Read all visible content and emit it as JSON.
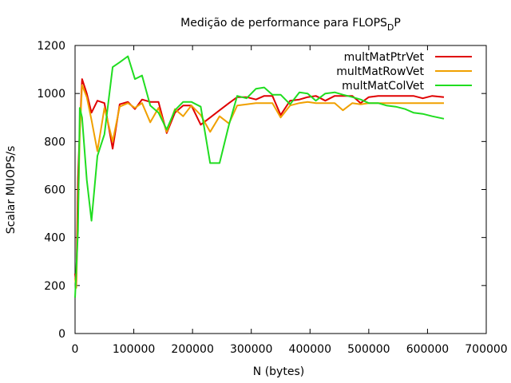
{
  "chart_data": {
    "type": "line",
    "title": {
      "main": "Medição de performance para FLOPS",
      "sub": "D",
      "tail": "P"
    },
    "xlabel": "N (bytes)",
    "ylabel": "Scalar MUOPS/s",
    "xlim": [
      0,
      700000
    ],
    "ylim": [
      0,
      1200
    ],
    "xticks": [
      0,
      100000,
      200000,
      300000,
      400000,
      500000,
      600000,
      700000
    ],
    "yticks": [
      0,
      200,
      400,
      600,
      800,
      1000,
      1200
    ],
    "grid": false,
    "legend_position": "top-right",
    "series": [
      {
        "name": "multMatPtrVet",
        "color": "#e00000",
        "x": [
          0,
          2000,
          5000,
          8000,
          12000,
          20000,
          28000,
          38000,
          50000,
          64000,
          76000,
          90000,
          102000,
          114000,
          128000,
          142000,
          156000,
          170000,
          184000,
          198000,
          214000,
          230000,
          246000,
          262000,
          276000,
          292000,
          308000,
          322000,
          336000,
          350000,
          366000,
          382000,
          396000,
          410000,
          426000,
          442000,
          456000,
          472000,
          486000,
          500000,
          516000,
          530000,
          546000,
          562000,
          576000,
          592000,
          608000,
          628000
        ],
        "y": [
          250,
          200,
          650,
          850,
          1060,
          1000,
          920,
          970,
          960,
          770,
          955,
          965,
          935,
          975,
          965,
          965,
          835,
          920,
          950,
          950,
          870,
          900,
          930,
          960,
          985,
          985,
          975,
          990,
          990,
          910,
          970,
          975,
          985,
          990,
          970,
          990,
          990,
          990,
          960,
          985,
          990,
          990,
          990,
          990,
          990,
          980,
          990,
          985
        ]
      },
      {
        "name": "multMatRowVet",
        "color": "#f0a000",
        "x": [
          0,
          2000,
          5000,
          8000,
          12000,
          20000,
          28000,
          38000,
          50000,
          64000,
          76000,
          90000,
          102000,
          114000,
          128000,
          142000,
          156000,
          170000,
          184000,
          198000,
          214000,
          230000,
          246000,
          262000,
          276000,
          292000,
          308000,
          322000,
          336000,
          350000,
          366000,
          382000,
          396000,
          410000,
          426000,
          442000,
          456000,
          472000,
          486000,
          500000,
          516000,
          530000,
          546000,
          562000,
          576000,
          592000,
          608000,
          628000
        ],
        "y": [
          230,
          190,
          500,
          830,
          1035,
          985,
          890,
          760,
          940,
          800,
          945,
          960,
          940,
          960,
          880,
          940,
          840,
          935,
          905,
          950,
          910,
          840,
          905,
          875,
          950,
          955,
          960,
          960,
          960,
          900,
          950,
          960,
          965,
          960,
          960,
          960,
          930,
          960,
          955,
          960,
          960,
          960,
          960,
          960,
          960,
          960,
          960,
          960
        ]
      },
      {
        "name": "multMatColVet",
        "color": "#20dd20",
        "x": [
          0,
          2000,
          5000,
          8000,
          12000,
          20000,
          28000,
          38000,
          50000,
          64000,
          76000,
          90000,
          102000,
          114000,
          128000,
          142000,
          156000,
          170000,
          184000,
          198000,
          214000,
          230000,
          246000,
          262000,
          276000,
          292000,
          308000,
          322000,
          336000,
          350000,
          366000,
          382000,
          396000,
          410000,
          426000,
          442000,
          456000,
          472000,
          486000,
          500000,
          516000,
          530000,
          546000,
          562000,
          576000,
          592000,
          608000,
          628000
        ],
        "y": [
          150,
          260,
          430,
          940,
          900,
          640,
          470,
          740,
          830,
          1110,
          1130,
          1155,
          1060,
          1075,
          950,
          920,
          850,
          930,
          965,
          965,
          945,
          710,
          710,
          870,
          990,
          980,
          1020,
          1025,
          995,
          995,
          955,
          1005,
          1000,
          970,
          1000,
          1005,
          995,
          985,
          975,
          960,
          960,
          950,
          945,
          935,
          920,
          915,
          905,
          895
        ]
      }
    ]
  }
}
